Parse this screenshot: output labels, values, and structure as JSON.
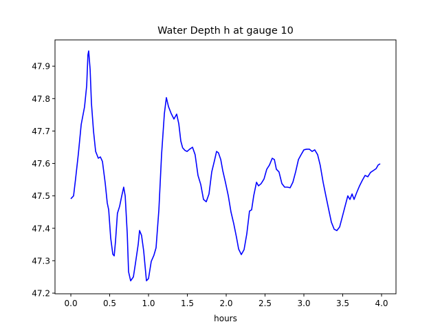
{
  "chart_data": {
    "type": "line",
    "title": "Water Depth h at gauge 10",
    "xlabel": "hours",
    "ylabel": "",
    "xlim": [
      -0.204,
      4.186
    ],
    "ylim": [
      47.198,
      47.981
    ],
    "xticks": [
      0.0,
      0.5,
      1.0,
      1.5,
      2.0,
      2.5,
      3.0,
      3.5,
      4.0
    ],
    "xtick_labels": [
      "0.0",
      "0.5",
      "1.0",
      "1.5",
      "2.0",
      "2.5",
      "3.0",
      "3.5",
      "4.0"
    ],
    "yticks": [
      47.2,
      47.3,
      47.4,
      47.5,
      47.6,
      47.7,
      47.8,
      47.9
    ],
    "ytick_labels": [
      "47.2",
      "47.3",
      "47.4",
      "47.5",
      "47.6",
      "47.7",
      "47.8",
      "47.9"
    ],
    "grid": false,
    "series": [
      {
        "name": "h",
        "color": "#0000ff",
        "x": [
          0,
          0.035,
          0.06,
          0.097,
          0.133,
          0.177,
          0.204,
          0.22,
          0.23,
          0.248,
          0.265,
          0.292,
          0.319,
          0.354,
          0.38,
          0.407,
          0.442,
          0.469,
          0.487,
          0.513,
          0.54,
          0.558,
          0.575,
          0.6,
          0.628,
          0.655,
          0.68,
          0.7,
          0.726,
          0.743,
          0.77,
          0.805,
          0.832,
          0.867,
          0.885,
          0.91,
          0.938,
          0.973,
          1.0,
          1.035,
          1.07,
          1.097,
          1.133,
          1.168,
          1.204,
          1.23,
          1.257,
          1.292,
          1.327,
          1.363,
          1.39,
          1.416,
          1.44,
          1.47,
          1.496,
          1.53,
          1.566,
          1.6,
          1.637,
          1.672,
          1.708,
          1.743,
          1.779,
          1.814,
          1.85,
          1.876,
          1.9,
          1.93,
          1.956,
          1.99,
          2.027,
          2.062,
          2.097,
          2.133,
          2.16,
          2.195,
          2.23,
          2.265,
          2.3,
          2.327,
          2.354,
          2.39,
          2.416,
          2.45,
          2.487,
          2.522,
          2.557,
          2.593,
          2.62,
          2.646,
          2.68,
          2.717,
          2.752,
          2.788,
          2.823,
          2.858,
          2.894,
          2.93,
          2.965,
          3.0,
          3.035,
          3.07,
          3.106,
          3.14,
          3.177,
          3.21,
          3.248,
          3.283,
          3.32,
          3.354,
          3.39,
          3.425,
          3.46,
          3.496,
          3.53,
          3.566,
          3.593,
          3.62,
          3.646,
          3.68,
          3.717,
          3.752,
          3.788,
          3.823,
          3.858,
          3.894,
          3.93,
          3.956,
          3.982
        ],
        "y": [
          47.491,
          47.5,
          47.55,
          47.63,
          47.72,
          47.775,
          47.84,
          47.935,
          47.947,
          47.89,
          47.786,
          47.7,
          47.637,
          47.616,
          47.62,
          47.606,
          47.54,
          47.478,
          47.457,
          47.37,
          47.32,
          47.315,
          47.36,
          47.446,
          47.468,
          47.5,
          47.527,
          47.5,
          47.383,
          47.266,
          47.238,
          47.25,
          47.293,
          47.35,
          47.393,
          47.378,
          47.33,
          47.238,
          47.245,
          47.298,
          47.317,
          47.34,
          47.457,
          47.627,
          47.754,
          47.803,
          47.775,
          47.754,
          47.737,
          47.752,
          47.722,
          47.669,
          47.648,
          47.64,
          47.637,
          47.644,
          47.65,
          47.627,
          47.563,
          47.535,
          47.489,
          47.482,
          47.506,
          47.574,
          47.61,
          47.637,
          47.633,
          47.612,
          47.578,
          47.542,
          47.5,
          47.45,
          47.414,
          47.372,
          47.336,
          47.319,
          47.334,
          47.383,
          47.453,
          47.457,
          47.5,
          47.542,
          47.531,
          47.538,
          47.552,
          47.582,
          47.595,
          47.616,
          47.612,
          47.582,
          47.574,
          47.538,
          47.527,
          47.527,
          47.525,
          47.542,
          47.574,
          47.612,
          47.627,
          47.642,
          47.644,
          47.644,
          47.637,
          47.642,
          47.627,
          47.595,
          47.542,
          47.5,
          47.457,
          47.419,
          47.397,
          47.393,
          47.404,
          47.436,
          47.468,
          47.5,
          47.489,
          47.506,
          47.489,
          47.51,
          47.531,
          47.548,
          47.563,
          47.559,
          47.572,
          47.578,
          47.584,
          47.595,
          47.599
        ]
      }
    ]
  }
}
